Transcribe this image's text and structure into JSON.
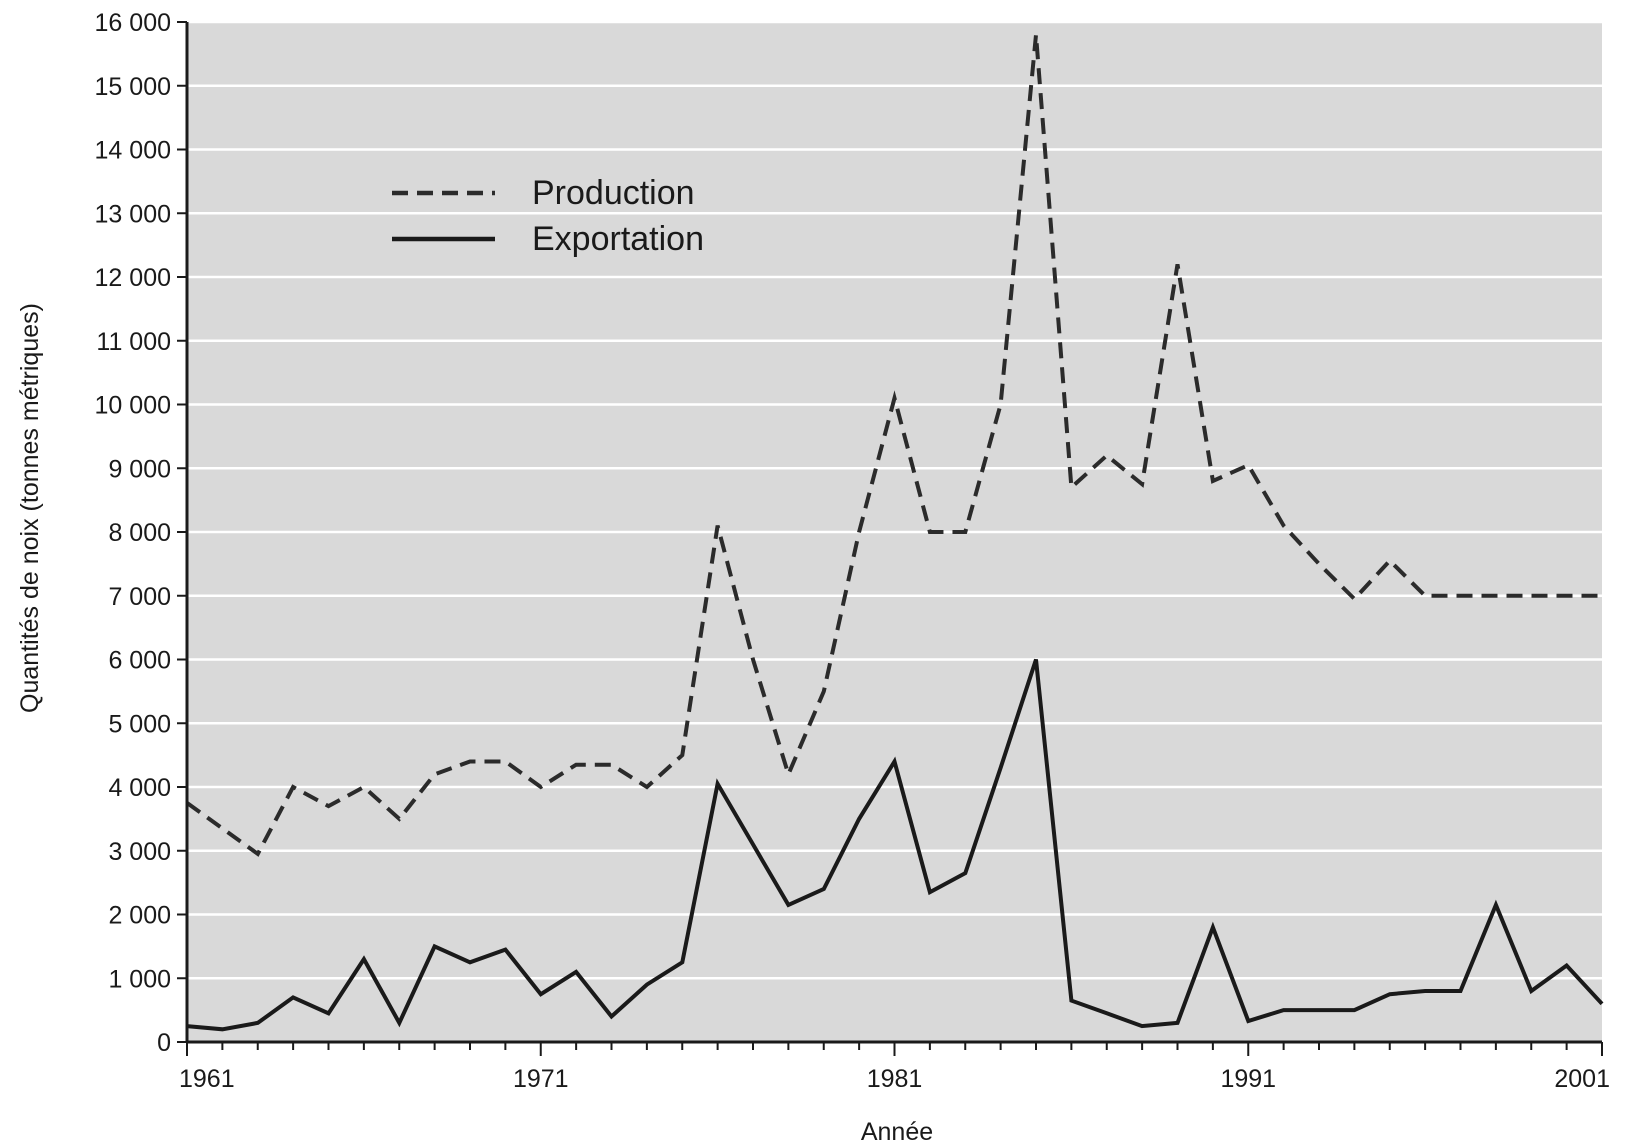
{
  "chart_data": {
    "type": "line",
    "title": "",
    "xlabel": "Année",
    "ylabel": "Quantités de noix (tonnes métriques)",
    "x": [
      1961,
      1962,
      1963,
      1964,
      1965,
      1966,
      1967,
      1968,
      1969,
      1970,
      1971,
      1972,
      1973,
      1974,
      1975,
      1976,
      1977,
      1978,
      1979,
      1980,
      1981,
      1982,
      1983,
      1984,
      1985,
      1986,
      1987,
      1988,
      1989,
      1990,
      1991,
      1992,
      1993,
      1994,
      1995,
      1996,
      1997,
      1998,
      1999,
      2000,
      2001
    ],
    "xlim": [
      1961,
      2001
    ],
    "ylim": [
      0,
      16000
    ],
    "xticks": [
      1961,
      1971,
      1981,
      1991,
      2001
    ],
    "xtick_labels": [
      "1961",
      "1971",
      "1981",
      "1991",
      "2001"
    ],
    "yticks": [
      0,
      1000,
      2000,
      3000,
      4000,
      5000,
      6000,
      7000,
      8000,
      9000,
      10000,
      11000,
      12000,
      13000,
      14000,
      15000,
      16000
    ],
    "ytick_labels": [
      "0",
      "1 000",
      "2 000",
      "3 000",
      "4 000",
      "5 000",
      "6 000",
      "7 000",
      "8 000",
      "9 000",
      "10 000",
      "11 000",
      "12 000",
      "13 000",
      "14 000",
      "15 000",
      "16 000"
    ],
    "grid": true,
    "grid_axis": "y",
    "background": "#d9d9d9",
    "legend_position": "upper-left",
    "series": [
      {
        "name": "Production",
        "style": "dashed",
        "color": "#2b2b2b",
        "values": [
          3750,
          3350,
          2950,
          4000,
          3700,
          4000,
          3500,
          4200,
          4400,
          4400,
          4000,
          4350,
          4350,
          4000,
          4500,
          8100,
          6000,
          4200,
          5500,
          8000,
          10100,
          8000,
          8000,
          10000,
          15800,
          8700,
          9200,
          8750,
          12200,
          8800,
          9050,
          8100,
          7500,
          6950,
          7550,
          7000,
          7000,
          7000,
          7000,
          7000,
          7000
        ]
      },
      {
        "name": "Exportation",
        "style": "solid",
        "color": "#1a1a1a",
        "values": [
          250,
          200,
          300,
          700,
          450,
          1300,
          300,
          1500,
          1250,
          1450,
          750,
          1100,
          400,
          900,
          1250,
          4050,
          3100,
          2150,
          2400,
          3500,
          4400,
          2350,
          2650,
          4300,
          6000,
          650,
          450,
          250,
          300,
          1800,
          330,
          500,
          500,
          500,
          750,
          800,
          800,
          2150,
          800,
          1200,
          600
        ]
      }
    ]
  }
}
